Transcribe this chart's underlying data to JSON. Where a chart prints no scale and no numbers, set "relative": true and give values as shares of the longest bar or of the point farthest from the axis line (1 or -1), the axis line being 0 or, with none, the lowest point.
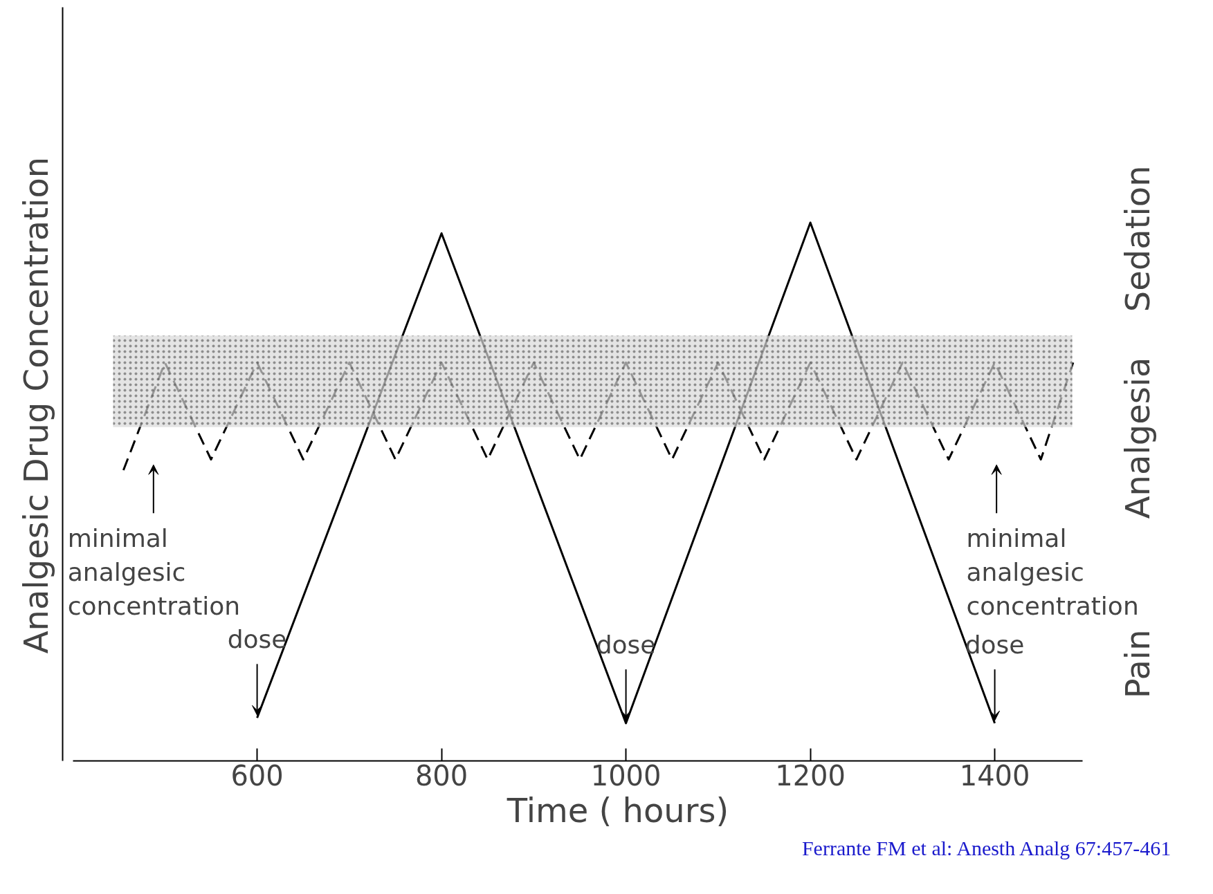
{
  "chart_data": {
    "type": "line",
    "relative": true,
    "xlabel": "Time ( hours)",
    "ylabel": "Analgesic   Drug   Concentration",
    "xlim": [
      400,
      1495
    ],
    "xticks": [
      600,
      800,
      1000,
      1200,
      1400
    ],
    "grid": false,
    "series": [
      {
        "color": "#000000",
        "line_style": "solid",
        "x": [
          600,
          800,
          1000,
          1200,
          1400
        ],
        "values": [
          0.08,
          0.98,
          0.07,
          1.0,
          0.07
        ]
      },
      {
        "color": "#000000",
        "line_style": "dashed",
        "x": [
          455,
          500,
          550,
          600,
          650,
          700,
          750,
          800,
          850,
          900,
          950,
          1000,
          1050,
          1100,
          1150,
          1200,
          1250,
          1300,
          1350,
          1400,
          1450,
          1485
        ],
        "values": [
          0.54,
          0.74,
          0.56,
          0.74,
          0.56,
          0.74,
          0.56,
          0.74,
          0.56,
          0.74,
          0.56,
          0.74,
          0.56,
          0.74,
          0.56,
          0.74,
          0.56,
          0.74,
          0.56,
          0.74,
          0.56,
          0.74
        ]
      }
    ],
    "bands": [
      {
        "axis": "y",
        "from": 0.62,
        "to": 0.79,
        "color": "#d8d8d8"
      }
    ],
    "annotations": [
      {
        "text": "dose",
        "x": 600,
        "y": 0.08
      },
      {
        "text": "dose",
        "x": 1000,
        "y": 0.07
      },
      {
        "text": "dose",
        "x": 1400,
        "y": 0.07
      },
      "minimal\nanalgesic\nconcentration",
      "minimal\nanalgesic\nconcentration",
      "Sedation",
      "Analgesia",
      "Pain",
      "Ferrante FM et al: Anesth Analg 67:457-461"
    ]
  }
}
